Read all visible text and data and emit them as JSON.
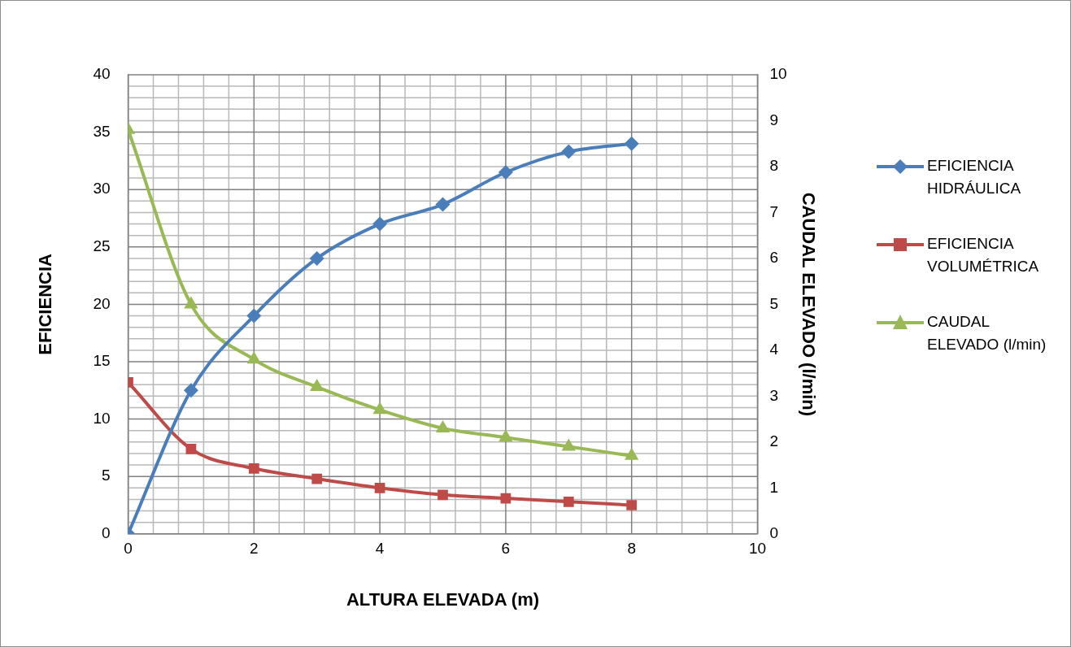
{
  "chart_data": {
    "type": "line",
    "xlabel": "ALTURA ELEVADA (m)",
    "ylabel": "EFICIENCIA",
    "y2label": "CAUDAL ELEVADO (l/min)",
    "x": [
      0,
      1,
      2,
      3,
      4,
      5,
      6,
      7,
      8
    ],
    "series": [
      {
        "name": "EFICIENCIA HIDRÁULICA",
        "color": "#4a7ebb",
        "marker": "diamond",
        "values": [
          0,
          12.5,
          19,
          24,
          27,
          28.7,
          31.5,
          33.3,
          34
        ]
      },
      {
        "name": "EFICIENCIA VOLUMÉTRICA",
        "color": "#be4b48",
        "marker": "square",
        "values": [
          13.2,
          7.4,
          5.7,
          4.8,
          4,
          3.4,
          3.1,
          2.8,
          2.5
        ]
      },
      {
        "name": "CAUDAL ELEVADO (l/min)",
        "color": "#98b954",
        "marker": "triangle",
        "axis": "y2",
        "values": [
          8.8,
          5,
          3.8,
          3.2,
          2.7,
          2.3,
          2.1,
          1.9,
          1.7
        ]
      }
    ],
    "xlim": [
      0,
      10
    ],
    "xticks": [
      0,
      2,
      4,
      6,
      8,
      10
    ],
    "ylim": [
      0,
      40
    ],
    "yticks": [
      0,
      5,
      10,
      15,
      20,
      25,
      30,
      35,
      40
    ],
    "y2lim": [
      0,
      10
    ],
    "y2ticks": [
      0,
      1,
      2,
      3,
      4,
      5,
      6,
      7,
      8,
      9,
      10
    ],
    "grid": true,
    "legend": "right",
    "line_style": "solid"
  }
}
